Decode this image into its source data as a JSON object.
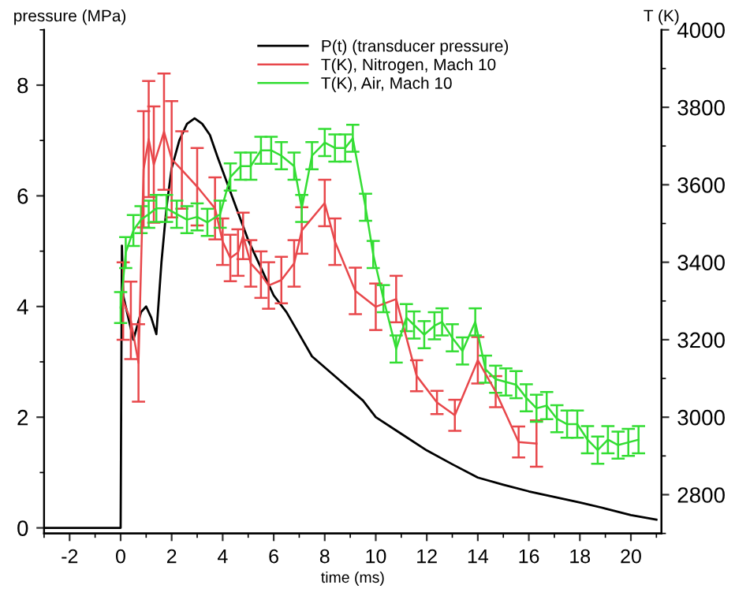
{
  "chart_data": {
    "type": "line",
    "xlabel": "time (ms)",
    "ylabel": "pressure (MPa)",
    "y2label": "T (K)",
    "xlim": [
      -3,
      21.2
    ],
    "xticks": [
      -2,
      0,
      2,
      4,
      6,
      8,
      10,
      12,
      14,
      16,
      18,
      20
    ],
    "ylim": [
      -0.1,
      9
    ],
    "yticks": [
      0,
      2,
      4,
      6,
      8
    ],
    "y2lim": [
      2700,
      4000
    ],
    "y2ticks": [
      2800,
      3000,
      3200,
      3400,
      3600,
      3800,
      4000
    ],
    "legend": "top",
    "grid": false,
    "marker": "none",
    "line_style": "solid",
    "series": [
      {
        "name": "P(t) (transducer pressure)",
        "color": "#000000",
        "x": [
          -3,
          0,
          0.05,
          0.1,
          0.3,
          0.5,
          0.8,
          1.0,
          1.2,
          1.4,
          1.6,
          1.8,
          2.0,
          2.3,
          2.6,
          2.9,
          3.2,
          3.5,
          3.8,
          4.2,
          4.6,
          5.0,
          5.5,
          6,
          6.5,
          7,
          7.5,
          8,
          8.5,
          9,
          9.5,
          10,
          11,
          12,
          13,
          14,
          15,
          16,
          17,
          18,
          19,
          20,
          21
        ],
        "values": [
          0,
          0,
          5.1,
          4.2,
          3.8,
          3.4,
          3.9,
          4.0,
          3.8,
          3.5,
          4.8,
          5.8,
          6.5,
          7.0,
          7.3,
          7.4,
          7.3,
          7.1,
          6.7,
          6.2,
          5.7,
          5.2,
          4.7,
          4.2,
          3.9,
          3.5,
          3.1,
          2.9,
          2.7,
          2.5,
          2.3,
          2.0,
          1.7,
          1.4,
          1.15,
          0.91,
          0.78,
          0.66,
          0.56,
          0.46,
          0.35,
          0.23,
          0.15
        ]
      },
      {
        "name": "T(K), Nitrogen, Mach 10",
        "color": "#e8474b",
        "axis": "y2",
        "x": [
          0.1,
          0.4,
          0.7,
          0.9,
          1.1,
          1.3,
          1.7,
          2.0,
          2.4,
          3.0,
          3.7,
          4.0,
          4.3,
          4.6,
          4.8,
          5.1,
          5.5,
          5.8,
          6.3,
          6.8,
          7.1,
          8.0,
          8.4,
          9.2,
          10.0,
          10.8,
          11.6,
          12.4,
          13.1,
          14.0,
          14.7,
          15.6,
          16.3
        ],
        "values": [
          3300,
          3250,
          3140,
          3640,
          3718,
          3652,
          3737,
          3666,
          3638,
          3595,
          3539,
          3453,
          3411,
          3425,
          3468,
          3397,
          3368,
          3340,
          3354,
          3397,
          3482,
          3553,
          3453,
          3326,
          3285,
          3305,
          3107,
          3038,
          3005,
          3147,
          3066,
          2936,
          2932
        ],
        "errors": [
          100,
          100,
          100,
          150,
          150,
          150,
          150,
          150,
          100,
          100,
          80,
          60,
          60,
          60,
          60,
          60,
          60,
          60,
          60,
          60,
          60,
          60,
          60,
          60,
          60,
          60,
          40,
          30,
          40,
          60,
          40,
          40,
          60
        ]
      },
      {
        "name": "T(K), Air, Mach 10",
        "color": "#33dd33",
        "axis": "y2",
        "x": [
          0.0,
          0.2,
          0.5,
          0.8,
          1.1,
          1.4,
          1.8,
          2.2,
          2.6,
          3.0,
          3.4,
          3.9,
          4.3,
          4.7,
          5.1,
          5.5,
          5.9,
          6.3,
          6.8,
          7.1,
          7.5,
          8.0,
          8.4,
          8.8,
          9.1,
          9.6,
          9.9,
          10.3,
          10.8,
          11.2,
          11.5,
          11.9,
          12.3,
          12.6,
          13.0,
          13.4,
          13.9,
          14.3,
          14.7,
          15.1,
          15.5,
          15.9,
          16.3,
          16.7,
          17.1,
          17.5,
          17.9,
          18.3,
          18.7,
          19.1,
          19.5,
          19.9,
          20.3
        ],
        "values": [
          3283,
          3425,
          3482,
          3510,
          3524,
          3539,
          3539,
          3524,
          3510,
          3517,
          3503,
          3524,
          3620,
          3648,
          3648,
          3689,
          3689,
          3675,
          3648,
          3539,
          3675,
          3709,
          3695,
          3695,
          3720,
          3542,
          3420,
          3306,
          3176,
          3257,
          3238,
          3213,
          3236,
          3246,
          3205,
          3171,
          3246,
          3124,
          3098,
          3091,
          3084,
          3050,
          3023,
          3030,
          2996,
          2982,
          2982,
          2942,
          2915,
          2942,
          2928,
          2935,
          2942
        ],
        "errors": [
          40,
          40,
          40,
          35,
          35,
          35,
          35,
          35,
          35,
          35,
          35,
          35,
          35,
          35,
          35,
          35,
          35,
          35,
          35,
          35,
          35,
          35,
          35,
          35,
          35,
          35,
          35,
          35,
          35,
          35,
          35,
          35,
          35,
          35,
          35,
          35,
          35,
          35,
          35,
          35,
          35,
          35,
          35,
          35,
          35,
          35,
          35,
          35,
          35,
          35,
          35,
          35,
          35
        ]
      }
    ]
  }
}
